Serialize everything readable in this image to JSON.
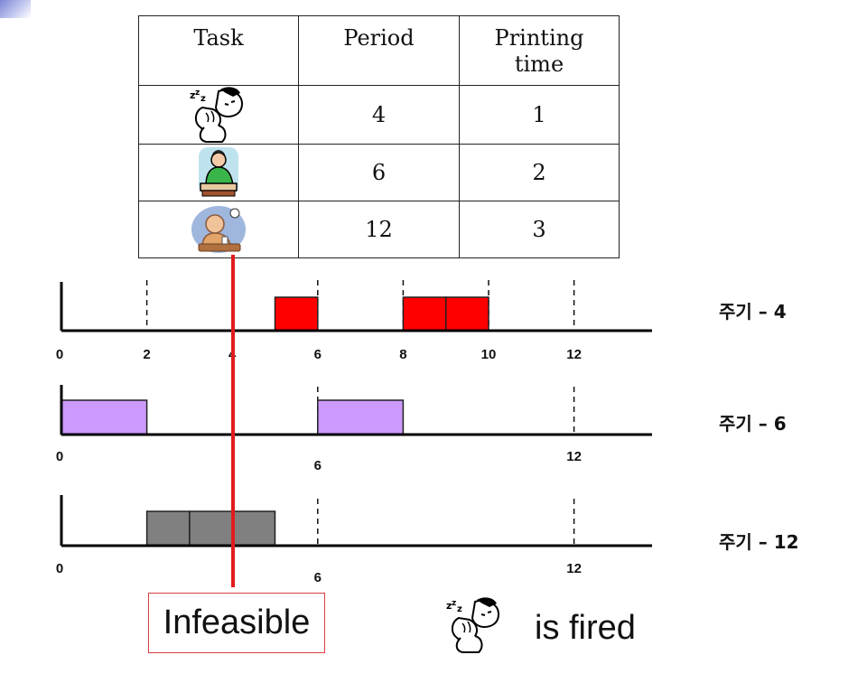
{
  "table": {
    "headers": [
      "Task",
      "Period",
      "Printing time"
    ],
    "rows": [
      {
        "icon": "sleeping-man-icon",
        "period": "4",
        "printing_time": "1"
      },
      {
        "icon": "man-at-desk-icon",
        "period": "6",
        "printing_time": "2"
      },
      {
        "icon": "man-drinking-icon",
        "period": "12",
        "printing_time": "3"
      }
    ]
  },
  "timelines": [
    {
      "label": "주기 – 4",
      "tick_labels": [
        "0",
        "2",
        "4",
        "6",
        "8",
        "10",
        "12"
      ],
      "dashed_marks": [
        2,
        6,
        8,
        10,
        12
      ],
      "blocks": [
        {
          "start": 5,
          "end": 6,
          "color": "#ff0000"
        },
        {
          "start": 8,
          "end": 9,
          "color": "#ff0000"
        },
        {
          "start": 9,
          "end": 10,
          "color": "#ff0000"
        }
      ]
    },
    {
      "label": "주기 – 6",
      "tick_labels": [
        "0",
        "6",
        "12"
      ],
      "dashed_marks": [
        6,
        12
      ],
      "blocks": [
        {
          "start": 0,
          "end": 2,
          "color": "#cc99ff"
        },
        {
          "start": 6,
          "end": 8,
          "color": "#cc99ff"
        }
      ]
    },
    {
      "label": "주기 – 12",
      "tick_labels": [
        "0",
        "6",
        "12"
      ],
      "dashed_marks": [
        6,
        12
      ],
      "blocks": [
        {
          "start": 2,
          "end": 3,
          "color": "#808080"
        },
        {
          "start": 3,
          "end": 5,
          "color": "#808080"
        }
      ]
    }
  ],
  "result_label": "Infeasible",
  "fired_text": "is fired",
  "colors": {
    "marker_line": "#e31b1b",
    "result_border": "#d94040"
  }
}
